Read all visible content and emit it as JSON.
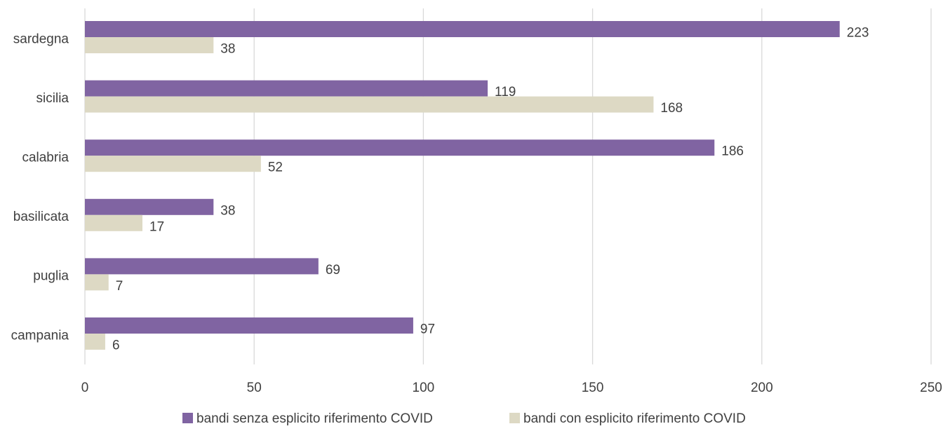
{
  "chart_data": {
    "type": "bar",
    "orientation": "horizontal",
    "categories": [
      "sardegna",
      "sicilia",
      "calabria",
      "basilicata",
      "puglia",
      "campania"
    ],
    "series": [
      {
        "name": "bandi senza esplicito riferimento COVID",
        "color": "#8064a2",
        "values": [
          223,
          119,
          186,
          38,
          69,
          97
        ]
      },
      {
        "name": "bandi con esplicito riferimento COVID",
        "color": "#ddd9c4",
        "values": [
          38,
          168,
          52,
          17,
          7,
          6
        ]
      }
    ],
    "xlim": [
      0,
      250
    ],
    "xticks": [
      0,
      50,
      100,
      150,
      200,
      250
    ],
    "grid": "vertical",
    "legend_position": "bottom",
    "data_labels": true
  }
}
